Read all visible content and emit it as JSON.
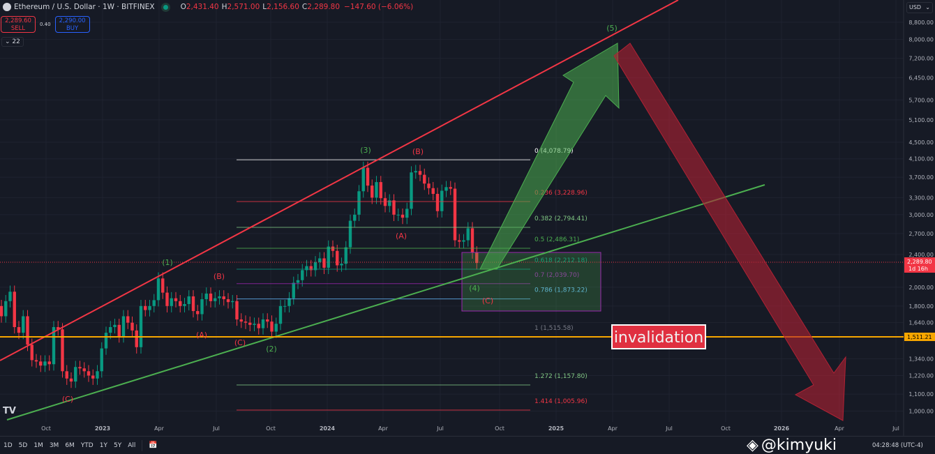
{
  "header": {
    "symbol": "Ethereum / U.S. Dollar · 1W · BITFINEX",
    "o_label": "O",
    "o": "2,431.40",
    "h_label": "H",
    "h": "2,571.00",
    "l_label": "L",
    "l": "2,156.60",
    "c_label": "C",
    "c": "2,289.80",
    "change": "−147.60 (−6.06%)"
  },
  "trade": {
    "sell_price": "2,289.60",
    "sell_label": "SELL",
    "spread": "0.40",
    "buy_price": "2,290.00",
    "buy_label": "BUY"
  },
  "indicators_collapse": "22",
  "currency": "USD",
  "price_axis": [
    "8,800.00",
    "8,000.00",
    "7,200.00",
    "6,450.00",
    "5,700.00",
    "5,100.00",
    "4,500.00",
    "4,100.00",
    "3,700.00",
    "3,300.00",
    "3,000.00",
    "2,700.00",
    "2,400.00",
    "2,000.00",
    "1,800.00",
    "1,640.00",
    "1,340.00",
    "1,220.00",
    "1,100.00",
    "1,000.00"
  ],
  "price_axis_values": [
    8800,
    8000,
    7200,
    6450,
    5700,
    5100,
    4500,
    4100,
    3700,
    3300,
    3000,
    2700,
    2400,
    2000,
    1800,
    1640,
    1340,
    1220,
    1100,
    1000
  ],
  "last_price_tag": {
    "price": "2,289.80",
    "countdown": "1d 16h",
    "color": "#f23645"
  },
  "invalidation_tag": {
    "price": "1,511.21",
    "color": "#f7a600"
  },
  "time_axis": [
    "Oct",
    "2023",
    "Apr",
    "Jul",
    "Oct",
    "2024",
    "Apr",
    "Jul",
    "Oct",
    "2025",
    "Apr",
    "Jul",
    "Oct",
    "2026",
    "Apr",
    "Jul"
  ],
  "fib_levels": [
    {
      "label": "0 (4,078.79)",
      "price": 4078.79,
      "color": "#ffffff"
    },
    {
      "label": "0.236 (3,228.96)",
      "price": 3228.96,
      "color": "#f23645"
    },
    {
      "label": "0.382 (2,794.41)",
      "price": 2794.41,
      "color": "#81c784"
    },
    {
      "label": "0.5 (2,486.31)",
      "price": 2486.31,
      "color": "#4caf50"
    },
    {
      "label": "0.618 (2,212.18)",
      "price": 2212.18,
      "color": "#089981"
    },
    {
      "label": "0.7 (2,039.70)",
      "price": 2039.7,
      "color": "#9c27b0"
    },
    {
      "label": "0.786 (1,873.22)",
      "price": 1873.22,
      "color": "#64b5f6"
    },
    {
      "label": "1 (1,515.58)",
      "price": 1515.58,
      "color": "#787b86"
    },
    {
      "label": "1.272 (1,157.80)",
      "price": 1157.8,
      "color": "#81c784"
    },
    {
      "label": "1.414 (1,005.96)",
      "price": 1005.96,
      "color": "#f23645"
    }
  ],
  "wave_labels": [
    {
      "text": "(C)",
      "color": "#f23645"
    },
    {
      "text": "(1)",
      "color": "#4caf50"
    },
    {
      "text": "(A)",
      "color": "#f23645"
    },
    {
      "text": "(B)",
      "color": "#f23645"
    },
    {
      "text": "(C)",
      "color": "#f23645"
    },
    {
      "text": "(2)",
      "color": "#4caf50"
    },
    {
      "text": "(3)",
      "color": "#4caf50"
    },
    {
      "text": "(B)",
      "color": "#f23645"
    },
    {
      "text": "(A)",
      "color": "#f23645"
    },
    {
      "text": "(4)",
      "color": "#4caf50"
    },
    {
      "text": "(C)",
      "color": "#f23645"
    },
    {
      "text": "(5)",
      "color": "#4caf50"
    }
  ],
  "invalidation_label": "invalidation",
  "weekly_closes": [
    1700,
    1850,
    1950,
    1600,
    1550,
    1700,
    1450,
    1330,
    1320,
    1290,
    1320,
    1300,
    1600,
    1580,
    1250,
    1200,
    1180,
    1280,
    1270,
    1250,
    1220,
    1200,
    1250,
    1420,
    1550,
    1600,
    1620,
    1520,
    1700,
    1640,
    1570,
    1430,
    1800,
    1760,
    1800,
    1860,
    2100,
    1940,
    1800,
    1880,
    1850,
    1800,
    1820,
    1900,
    1750,
    1720,
    1870,
    1930,
    1850,
    1880,
    1900,
    1870,
    1840,
    1850,
    1670,
    1650,
    1640,
    1620,
    1630,
    1590,
    1670,
    1650,
    1560,
    1630,
    1800,
    1800,
    1880,
    2050,
    2080,
    2200,
    2250,
    2200,
    2300,
    2350,
    2230,
    2510,
    2450,
    2260,
    2280,
    2500,
    2900,
    3000,
    3420,
    3900,
    3530,
    3300,
    3600,
    3290,
    3150,
    3250,
    3000,
    3000,
    2950,
    3100,
    3800,
    3830,
    3750,
    3570,
    3480,
    3370,
    3060,
    3430,
    3500,
    3470,
    2600,
    2580,
    2600,
    2780,
    2430,
    2289.8
  ],
  "colors": {
    "up": "#089981",
    "down": "#f23645",
    "upper_channel": "#f23645",
    "lower_channel": "#4caf50"
  },
  "ranges": [
    "1D",
    "5D",
    "1M",
    "3M",
    "6M",
    "YTD",
    "1Y",
    "5Y",
    "All"
  ],
  "watermark": "@kimyuki",
  "clock": "04:28:48 (UTC-4)",
  "tv_logo": "TV"
}
